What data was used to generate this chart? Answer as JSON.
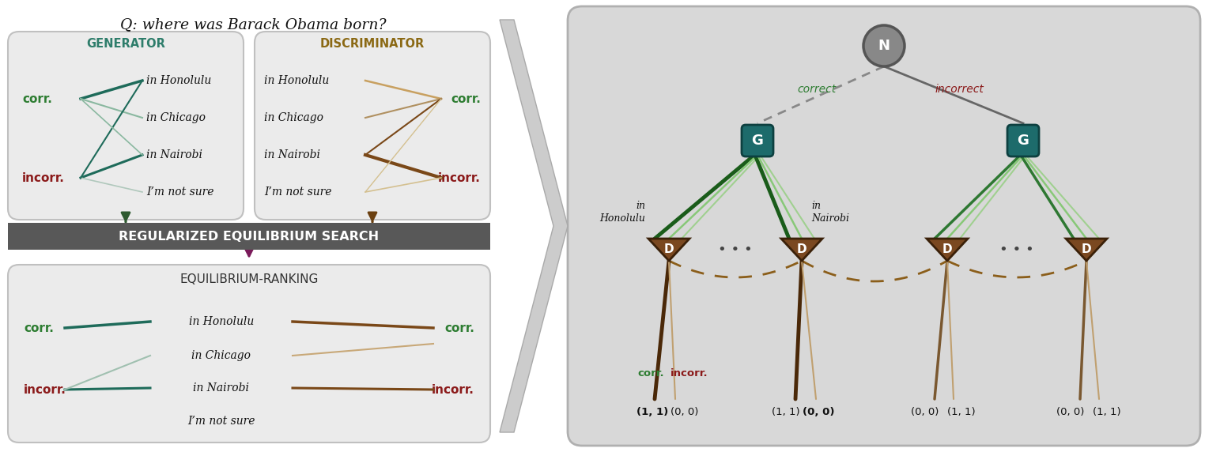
{
  "title_text": "Q: where was Barack Obama born?",
  "generator_title": "GENERATOR",
  "discriminator_title": "DISCRIMINATOR",
  "equilibrium_bar_text": "REGULARIZED EQUILIBRIUM SEARCH",
  "ranking_title": "EQUILIBRIUM-RANKING",
  "answers": [
    "in Honolulu",
    "in Chicago",
    "in Nairobi",
    "I’m not sure"
  ],
  "corr_color": "#2e7d32",
  "incorr_color": "#8b1a1a",
  "gen_title_color": "#2e7d6b",
  "disc_title_color": "#8B6914",
  "box_bg": "#e8e8e8",
  "box_edge": "#bbbbbb",
  "dark_bar_bg": "#5a5a5a",
  "dark_bar_text": "#ffffff",
  "ranking_title_color": "#555555",
  "panel_bg": "#dcdcdc",
  "panel_edge": "#aaaaaa",
  "chevron_color": "#cccccc",
  "n_node_fill": "#888888",
  "n_node_edge": "#555555",
  "g_box_fill": "#1d6b6b",
  "g_box_edge": "#0d4040",
  "d_tri_fill": "#7a4820",
  "d_tri_edge": "#3a2008",
  "correct_line_color": "#888888",
  "incorrect_line_color": "#666666",
  "correct_label_color": "#2e7d32",
  "incorrect_label_color": "#8b1a1a",
  "dark_green_line": "#1a5c1a",
  "light_green_line": "#90c878",
  "dark_brown_line": "#5c3010",
  "light_brown_line": "#c0a070",
  "dashed_arc_color": "#8B5E1A",
  "purple_arrow_color": "#7a1a5a",
  "gen_arrow_color": "#2e6040",
  "disc_arrow_color": "#6b4010"
}
